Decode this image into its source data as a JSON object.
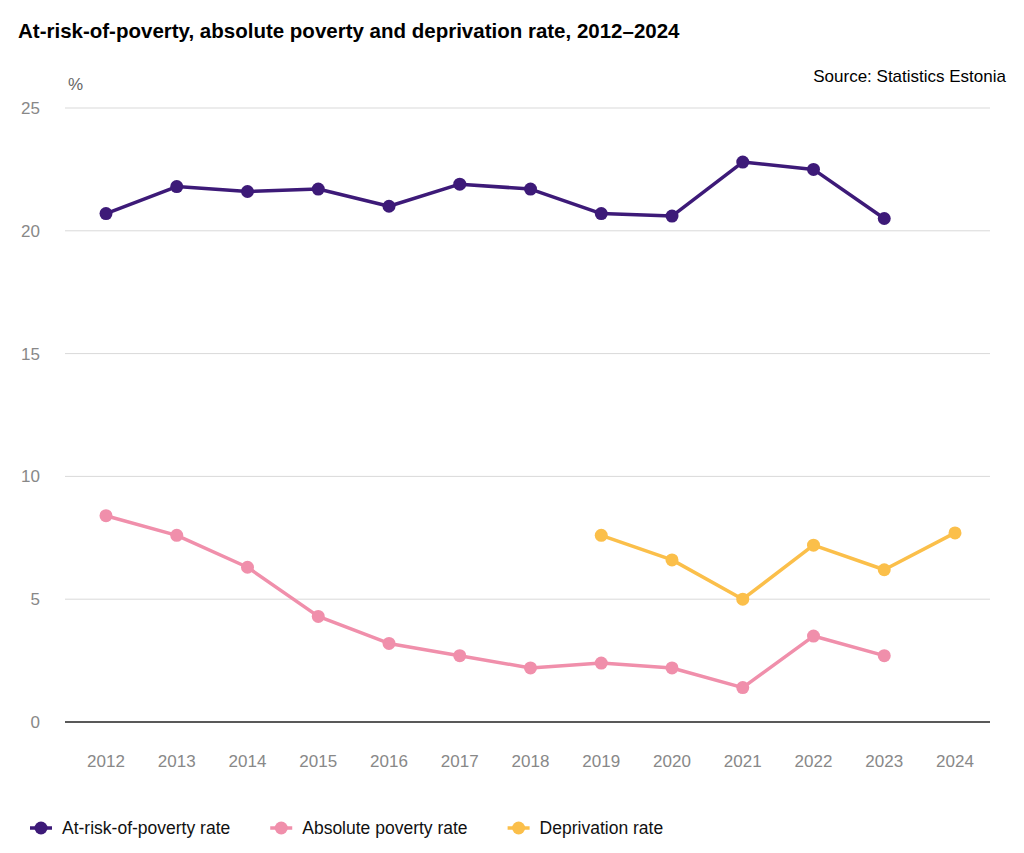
{
  "chart_data": {
    "type": "line",
    "title": "At-risk-of-poverty, absolute poverty and deprivation rate, 2012–2024",
    "source": "Source: Statistics Estonia",
    "y_label": "%",
    "categories": [
      "2012",
      "2013",
      "2014",
      "2015",
      "2016",
      "2017",
      "2018",
      "2019",
      "2020",
      "2021",
      "2022",
      "2023",
      "2024"
    ],
    "series": [
      {
        "name": "At-risk-of-poverty rate",
        "color": "#3d1a78",
        "values": [
          20.7,
          21.8,
          21.6,
          21.7,
          21.0,
          21.9,
          21.7,
          20.7,
          20.6,
          22.8,
          22.5,
          20.5,
          null
        ]
      },
      {
        "name": "Absolute poverty rate",
        "color": "#f08fab",
        "values": [
          8.4,
          7.6,
          6.3,
          4.3,
          3.2,
          2.7,
          2.2,
          2.4,
          2.2,
          1.4,
          3.5,
          2.7,
          null
        ]
      },
      {
        "name": "Deprivation rate",
        "color": "#fbbf4a",
        "values": [
          null,
          null,
          null,
          null,
          null,
          null,
          null,
          7.6,
          6.6,
          5.0,
          7.2,
          6.2,
          7.7
        ]
      }
    ],
    "ylim": [
      0,
      25
    ],
    "yticks": [
      0,
      5,
      10,
      15,
      20,
      25
    ],
    "grid": true,
    "legend": "bottom",
    "marker": "circle"
  }
}
